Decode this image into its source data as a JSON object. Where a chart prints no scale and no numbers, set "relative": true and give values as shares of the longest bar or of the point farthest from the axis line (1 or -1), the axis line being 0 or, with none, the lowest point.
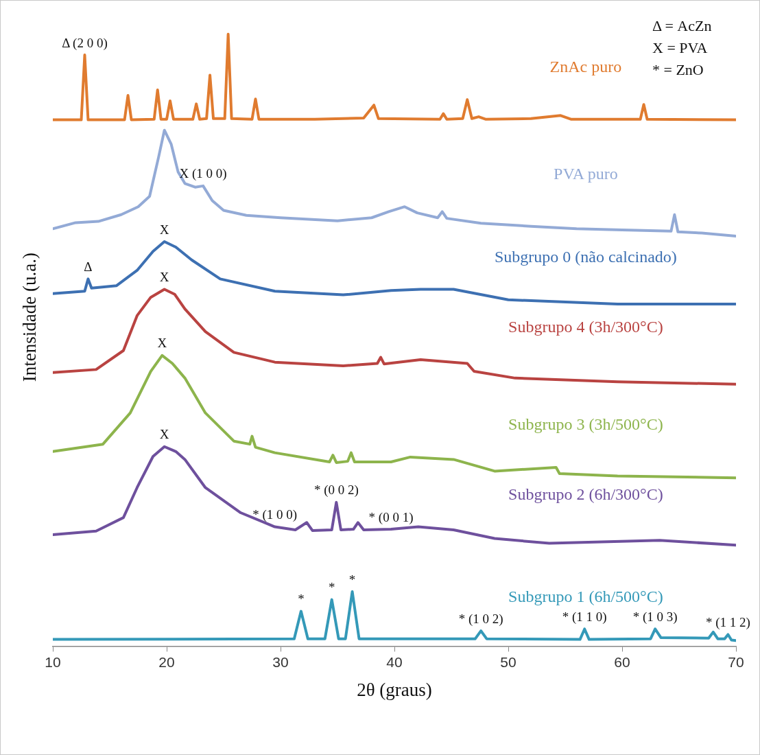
{
  "chart_data": {
    "type": "line",
    "relative": true,
    "xlabel": "2θ (graus)",
    "ylabel": "Intensidade (u.a.)",
    "xlim": [
      10,
      70
    ],
    "xticks": [
      10,
      20,
      30,
      40,
      50,
      60,
      70
    ],
    "grid": false,
    "legend": false,
    "marker": "none",
    "line_style": "solid",
    "series": [
      {
        "name": "ZnAc puro",
        "color": "#e07b2f",
        "x": [
          10,
          12.5,
          12.8,
          13.1,
          16.3,
          16.6,
          16.9,
          18.9,
          19.2,
          19.5,
          20.0,
          20.3,
          20.6,
          22.3,
          22.6,
          22.9,
          23.5,
          23.8,
          24.1,
          25.1,
          25.4,
          25.7,
          27.5,
          27.8,
          28.1,
          33,
          37.3,
          38.2,
          38.6,
          44.0,
          44.3,
          44.6,
          46.0,
          46.4,
          46.8,
          47.4,
          48,
          52,
          54.6,
          55.5,
          61.6,
          61.9,
          62.2,
          70
        ],
        "values": [
          0.86,
          0.86,
          0.966,
          0.86,
          0.86,
          0.9,
          0.86,
          0.861,
          0.909,
          0.861,
          0.861,
          0.891,
          0.861,
          0.861,
          0.886,
          0.861,
          0.862,
          0.933,
          0.862,
          0.862,
          1.0,
          0.862,
          0.861,
          0.894,
          0.861,
          0.861,
          0.863,
          0.884,
          0.862,
          0.861,
          0.87,
          0.861,
          0.862,
          0.893,
          0.862,
          0.865,
          0.861,
          0.862,
          0.867,
          0.861,
          0.861,
          0.885,
          0.861,
          0.86
        ]
      },
      {
        "name": "PVA puro",
        "color": "#93aad6",
        "x": [
          10,
          12,
          14,
          16,
          17.5,
          18.5,
          19.3,
          19.8,
          20.4,
          21,
          21.6,
          22.5,
          23.2,
          24,
          25,
          27,
          30,
          35,
          38,
          39.5,
          40.9,
          42,
          43.8,
          44.2,
          44.6,
          47.6,
          52,
          56,
          60,
          64.3,
          64.6,
          64.9,
          67,
          70
        ],
        "values": [
          0.682,
          0.692,
          0.694,
          0.705,
          0.718,
          0.735,
          0.8,
          0.843,
          0.82,
          0.775,
          0.756,
          0.75,
          0.752,
          0.728,
          0.712,
          0.704,
          0.7,
          0.695,
          0.7,
          0.71,
          0.718,
          0.708,
          0.7,
          0.71,
          0.699,
          0.691,
          0.686,
          0.682,
          0.68,
          0.678,
          0.705,
          0.677,
          0.675,
          0.67
        ]
      },
      {
        "name": "Subgrupo 0 (não calcinado)",
        "color": "#3d70b2",
        "x": [
          10,
          12.8,
          13.1,
          13.4,
          15.6,
          17.4,
          18.8,
          19.8,
          20.8,
          22.2,
          24.7,
          29.5,
          35.5,
          39.7,
          42.3,
          45.2,
          50,
          59.6,
          70
        ],
        "values": [
          0.576,
          0.58,
          0.6,
          0.585,
          0.589,
          0.614,
          0.645,
          0.661,
          0.652,
          0.631,
          0.6,
          0.58,
          0.574,
          0.581,
          0.583,
          0.583,
          0.566,
          0.559,
          0.559
        ]
      },
      {
        "name": "Subgrupo 4 (3h/300°C)",
        "color": "#b94341",
        "x": [
          10,
          13.8,
          16.2,
          17.4,
          18.6,
          19.8,
          20.7,
          21.6,
          23.4,
          25.9,
          29.5,
          35.5,
          38.5,
          38.8,
          39.1,
          42.3,
          46.4,
          47,
          50.6,
          59.6,
          70
        ],
        "values": [
          0.447,
          0.452,
          0.483,
          0.54,
          0.57,
          0.583,
          0.575,
          0.551,
          0.514,
          0.48,
          0.464,
          0.458,
          0.462,
          0.472,
          0.461,
          0.468,
          0.462,
          0.449,
          0.438,
          0.432,
          0.428
        ]
      },
      {
        "name": "Subgrupo 3 (3h/500°C)",
        "color": "#8db44c",
        "x": [
          10,
          14.4,
          16.8,
          18.6,
          19.6,
          20.5,
          21.6,
          23.4,
          25.9,
          27.3,
          27.5,
          27.8,
          29.5,
          34.3,
          34.6,
          34.9,
          35.9,
          36.2,
          36.5,
          39.7,
          41.4,
          45.2,
          48.8,
          54.2,
          54.5,
          59.6,
          70
        ],
        "values": [
          0.318,
          0.33,
          0.381,
          0.449,
          0.475,
          0.462,
          0.438,
          0.381,
          0.335,
          0.33,
          0.343,
          0.325,
          0.316,
          0.301,
          0.312,
          0.3,
          0.302,
          0.316,
          0.301,
          0.301,
          0.309,
          0.305,
          0.286,
          0.292,
          0.282,
          0.278,
          0.275
        ]
      },
      {
        "name": "Subgrupo 2 (6h/300°C)",
        "color": "#6e509d",
        "x": [
          10,
          13.8,
          16.2,
          17.4,
          18.8,
          19.8,
          20.8,
          21.6,
          23.4,
          26.5,
          29.5,
          31.3,
          32.3,
          32.8,
          34.5,
          34.9,
          35.3,
          36.4,
          36.8,
          37.3,
          39.7,
          42.1,
          45.2,
          48.8,
          53.6,
          63.3,
          70
        ],
        "values": [
          0.182,
          0.188,
          0.21,
          0.259,
          0.31,
          0.326,
          0.318,
          0.305,
          0.259,
          0.218,
          0.195,
          0.19,
          0.202,
          0.189,
          0.19,
          0.235,
          0.19,
          0.191,
          0.202,
          0.19,
          0.191,
          0.195,
          0.19,
          0.176,
          0.168,
          0.173,
          0.165
        ]
      },
      {
        "name": "Subgrupo 1 (6h/500°C)",
        "color": "#3499b8",
        "x": [
          10,
          31.2,
          31.8,
          32.4,
          33.9,
          34.5,
          35.1,
          35.7,
          36.3,
          36.9,
          47.1,
          47.6,
          48.1,
          56.3,
          56.7,
          57.1,
          62.5,
          62.9,
          63.4,
          67.6,
          68.0,
          68.4,
          69.0,
          69.3,
          69.6,
          70
        ],
        "values": [
          0.011,
          0.012,
          0.057,
          0.012,
          0.012,
          0.076,
          0.012,
          0.012,
          0.089,
          0.012,
          0.012,
          0.025,
          0.012,
          0.011,
          0.028,
          0.011,
          0.012,
          0.028,
          0.014,
          0.013,
          0.023,
          0.012,
          0.012,
          0.019,
          0.01,
          0.009
        ]
      }
    ],
    "annotations": [
      "Δ = AcZn",
      "X = PVA",
      "* = ZnO",
      {
        "text": "Δ (2 0 0)",
        "x": 12.8,
        "y": 0.966
      },
      {
        "text": "X (1 0 0)",
        "x": 23.2,
        "y": 0.752
      },
      {
        "text": "X",
        "x": 19.8,
        "y": 0.661
      },
      {
        "text": "Δ",
        "x": 13.1,
        "y": 0.6
      },
      {
        "text": "X",
        "x": 19.8,
        "y": 0.583
      },
      {
        "text": "X",
        "x": 19.6,
        "y": 0.475
      },
      {
        "text": "X",
        "x": 19.8,
        "y": 0.326
      },
      {
        "text": "* (1 0 0)",
        "x": 29.5,
        "y": 0.195
      },
      {
        "text": "* (0 0 2)",
        "x": 34.9,
        "y": 0.235
      },
      {
        "text": "* (0 0 1)",
        "x": 39.7,
        "y": 0.191
      },
      {
        "text": "*",
        "x": 31.8,
        "y": 0.057
      },
      {
        "text": "*",
        "x": 34.5,
        "y": 0.076
      },
      {
        "text": "*",
        "x": 36.3,
        "y": 0.089
      },
      {
        "text": "* (1 0 2)",
        "x": 47.6,
        "y": 0.025
      },
      {
        "text": "* (1 1 0)",
        "x": 56.7,
        "y": 0.028
      },
      {
        "text": "* (1 0 3)",
        "x": 62.9,
        "y": 0.028
      },
      {
        "text": "* (1 1 2)",
        "x": 69.3,
        "y": 0.019
      }
    ]
  }
}
